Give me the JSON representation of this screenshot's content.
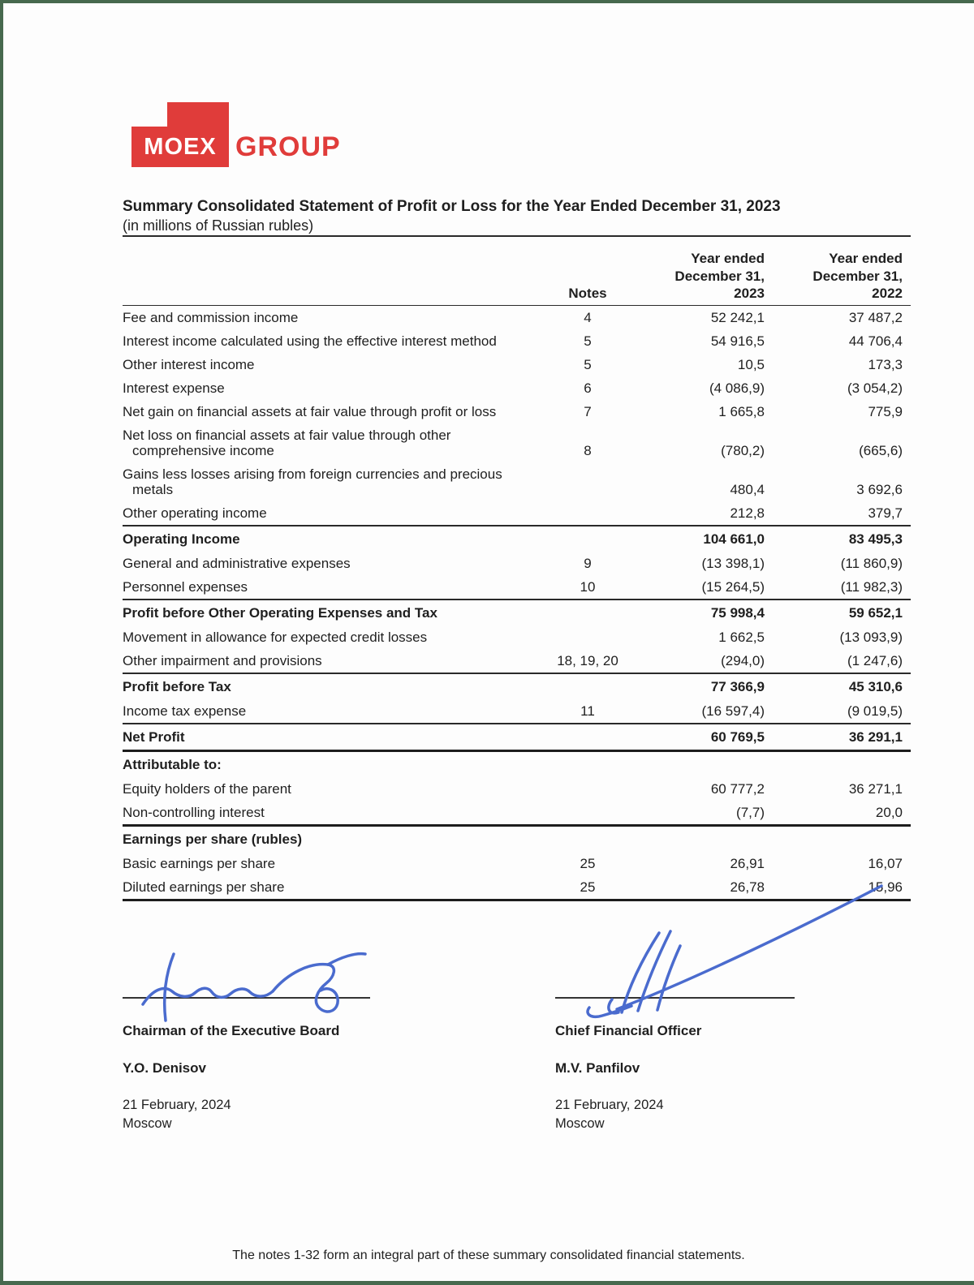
{
  "colors": {
    "logo_red": "#e03c3a",
    "signature_blue": "#4a6bce",
    "scan_border_green": "#47694e"
  },
  "logo": {
    "moex": "MOEX",
    "group": "GROUP"
  },
  "title": "Summary Consolidated Statement of Profit or Loss for the Year Ended December 31, 2023",
  "subtitle": "(in millions of Russian rubles)",
  "table": {
    "headers": {
      "notes": "Notes",
      "col2023": [
        "Year ended",
        "December 31,",
        "2023"
      ],
      "col2022": [
        "Year ended",
        "December 31,",
        "2022"
      ]
    },
    "rows": [
      {
        "label": "Fee and commission income",
        "note": "4",
        "y2023": "52 242,1",
        "y2022": "37 487,2"
      },
      {
        "label": "Interest income calculated using the effective interest method",
        "note": "5",
        "y2023": "54 916,5",
        "y2022": "44 706,4"
      },
      {
        "label": "Other interest income",
        "note": "5",
        "y2023": "10,5",
        "y2022": "173,3"
      },
      {
        "label": "Interest expense",
        "note": "6",
        "y2023": "(4 086,9)",
        "y2022": "(3 054,2)"
      },
      {
        "label": "Net gain on financial assets at fair value through profit or loss",
        "note": "7",
        "y2023": "1 665,8",
        "y2022": "775,9"
      },
      {
        "label": "Net loss on financial assets at fair value through other",
        "label2": "comprehensive income",
        "note": "8",
        "y2023": "(780,2)",
        "y2022": "(665,6)"
      },
      {
        "label": "Gains less losses arising from foreign currencies and precious",
        "label2": "metals",
        "note": "",
        "y2023": "480,4",
        "y2022": "3 692,6"
      },
      {
        "label": "Other operating income",
        "note": "",
        "y2023": "212,8",
        "y2022": "379,7"
      },
      {
        "label": "Operating Income",
        "note": "",
        "y2023": "104 661,0",
        "y2022": "83 495,3",
        "bold": true,
        "rule": "medium"
      },
      {
        "label": "General and administrative expenses",
        "note": "9",
        "y2023": "(13 398,1)",
        "y2022": "(11 860,9)"
      },
      {
        "label": "Personnel expenses",
        "note": "10",
        "y2023": "(15 264,5)",
        "y2022": "(11 982,3)"
      },
      {
        "label": "Profit before Other Operating Expenses and Tax",
        "note": "",
        "y2023": "75 998,4",
        "y2022": "59 652,1",
        "bold": true,
        "rule": "medium"
      },
      {
        "label": "Movement in allowance for expected credit losses",
        "note": "",
        "y2023": "1 662,5",
        "y2022": "(13 093,9)"
      },
      {
        "label": "Other impairment and provisions",
        "note": "18, 19, 20",
        "y2023": "(294,0)",
        "y2022": "(1 247,6)"
      },
      {
        "label": "Profit before Tax",
        "note": "",
        "y2023": "77 366,9",
        "y2022": "45 310,6",
        "bold": true,
        "rule": "medium"
      },
      {
        "label": "Income tax expense",
        "note": "11",
        "y2023": "(16 597,4)",
        "y2022": "(9 019,5)"
      },
      {
        "label": "Net Profit",
        "note": "",
        "y2023": "60 769,5",
        "y2022": "36 291,1",
        "bold": true,
        "rule": "medium"
      },
      {
        "label": "Attributable to:",
        "note": "",
        "y2023": "",
        "y2022": "",
        "bold": true,
        "rule": "thick"
      },
      {
        "label": "Equity holders of the parent",
        "note": "",
        "y2023": "60 777,2",
        "y2022": "36 271,1"
      },
      {
        "label": "Non-controlling interest",
        "note": "",
        "y2023": "(7,7)",
        "y2022": "20,0"
      },
      {
        "label": "Earnings per share (rubles)",
        "note": "",
        "y2023": "",
        "y2022": "",
        "bold": true,
        "rule": "thick"
      },
      {
        "label": "Basic earnings per share",
        "note": "25",
        "y2023": "26,91",
        "y2022": "16,07"
      },
      {
        "label": "Diluted earnings per share",
        "note": "25",
        "y2023": "26,78",
        "y2022": "15,96"
      }
    ]
  },
  "signatures": {
    "left": {
      "title": "Chairman of the Executive Board",
      "name": "Y.O. Denisov",
      "date": "21 February, 2024",
      "city": "Moscow"
    },
    "right": {
      "title": "Chief Financial Officer",
      "name": "M.V. Panfilov",
      "date": "21 February, 2024",
      "city": "Moscow"
    }
  },
  "footer": "The notes 1-32 form an integral part of these summary consolidated financial statements."
}
